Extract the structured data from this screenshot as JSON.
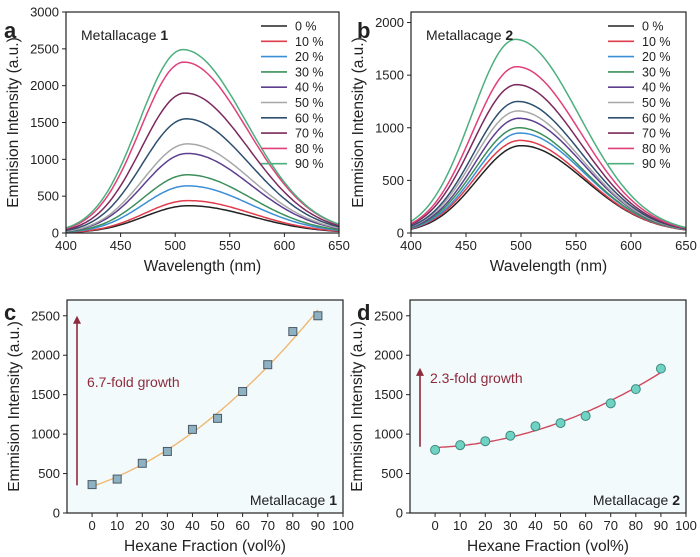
{
  "chart_data": [
    {
      "panel_letter": "a",
      "type": "line",
      "annotation_prefix": "Metallacage ",
      "annotation_bold": "1",
      "xlabel": "Wavelength (nm)",
      "ylabel": "Emmision Intensity (a.u.)",
      "xlim": [
        400,
        650
      ],
      "ylim": [
        0,
        3000
      ],
      "xticks": [
        400,
        450,
        500,
        550,
        600,
        650
      ],
      "yticks": [
        0,
        500,
        1000,
        1500,
        2000,
        2500,
        3000
      ],
      "legend_position": "top-right",
      "series": [
        {
          "name": "0 %",
          "peak_x": 512,
          "peak_y": 370,
          "color": "#222222"
        },
        {
          "name": "10 %",
          "peak_x": 512,
          "peak_y": 440,
          "color": "#e03c4b"
        },
        {
          "name": "20 %",
          "peak_x": 511,
          "peak_y": 640,
          "color": "#3a8fd6"
        },
        {
          "name": "30 %",
          "peak_x": 511,
          "peak_y": 790,
          "color": "#3c8f5a"
        },
        {
          "name": "40 %",
          "peak_x": 511,
          "peak_y": 1080,
          "color": "#5c3f8f"
        },
        {
          "name": "50 %",
          "peak_x": 511,
          "peak_y": 1210,
          "color": "#a8a8a8"
        },
        {
          "name": "60 %",
          "peak_x": 510,
          "peak_y": 1550,
          "color": "#2f4f6f"
        },
        {
          "name": "70 %",
          "peak_x": 509,
          "peak_y": 1900,
          "color": "#7b2a5e"
        },
        {
          "name": "80 %",
          "peak_x": 508,
          "peak_y": 2320,
          "color": "#e0407a"
        },
        {
          "name": "90 %",
          "peak_x": 507,
          "peak_y": 2490,
          "color": "#4caf7d"
        }
      ]
    },
    {
      "panel_letter": "b",
      "type": "line",
      "annotation_prefix": "Metallacage ",
      "annotation_bold": "2",
      "xlabel": "Wavelength (nm)",
      "ylabel": "Emmision Intensity (a.u.)",
      "xlim": [
        400,
        650
      ],
      "ylim": [
        0,
        2100
      ],
      "xticks": [
        400,
        450,
        500,
        550,
        600,
        650
      ],
      "yticks": [
        0,
        500,
        1000,
        1500,
        2000
      ],
      "legend_position": "top-right",
      "series": [
        {
          "name": "0 %",
          "peak_x": 500,
          "peak_y": 830,
          "color": "#222222"
        },
        {
          "name": "10 %",
          "peak_x": 499,
          "peak_y": 880,
          "color": "#e03c4b"
        },
        {
          "name": "20 %",
          "peak_x": 499,
          "peak_y": 950,
          "color": "#3a8fd6"
        },
        {
          "name": "30 %",
          "peak_x": 498,
          "peak_y": 1000,
          "color": "#3c8f5a"
        },
        {
          "name": "40 %",
          "peak_x": 498,
          "peak_y": 1090,
          "color": "#5c3f8f"
        },
        {
          "name": "50 %",
          "peak_x": 497,
          "peak_y": 1160,
          "color": "#a8a8a8"
        },
        {
          "name": "60 %",
          "peak_x": 497,
          "peak_y": 1250,
          "color": "#2f4f6f"
        },
        {
          "name": "70 %",
          "peak_x": 496,
          "peak_y": 1410,
          "color": "#7b2a5e"
        },
        {
          "name": "80 %",
          "peak_x": 496,
          "peak_y": 1580,
          "color": "#e0407a"
        },
        {
          "name": "90 %",
          "peak_x": 495,
          "peak_y": 1840,
          "color": "#4caf7d"
        }
      ]
    },
    {
      "panel_letter": "c",
      "type": "scatter",
      "annotation_prefix": "Metallacage ",
      "annotation_bold": "1",
      "growth_label": "6.7-fold growth",
      "xlabel": "Hexane Fraction (vol%)",
      "ylabel": "Emmision Intensity (a.u.)",
      "xlim": [
        -10,
        100
      ],
      "ylim": [
        0,
        2700
      ],
      "xticks": [
        0,
        10,
        20,
        30,
        40,
        50,
        60,
        70,
        80,
        90,
        100
      ],
      "yticks": [
        0,
        500,
        1000,
        1500,
        2000,
        2500
      ],
      "marker_color": "#8fb2c2",
      "fit_color": "#f0b872",
      "arrow_color": "#8e2b3c",
      "arrow_from": 350,
      "arrow_to": 2500,
      "x": [
        0,
        10,
        20,
        30,
        40,
        50,
        60,
        70,
        80,
        90
      ],
      "y": [
        360,
        430,
        630,
        780,
        1060,
        1200,
        1540,
        1880,
        2300,
        2500
      ]
    },
    {
      "panel_letter": "d",
      "type": "scatter",
      "annotation_prefix": "Metallacage ",
      "annotation_bold": "2",
      "growth_label": "2.3-fold growth",
      "xlabel": "Hexane Fraction (vol%)",
      "ylabel": "Emmision Intensity (a.u.)",
      "xlim": [
        -10,
        100
      ],
      "ylim": [
        0,
        2700
      ],
      "xticks": [
        0,
        10,
        20,
        30,
        40,
        50,
        60,
        70,
        80,
        90,
        100
      ],
      "yticks": [
        0,
        500,
        1000,
        1500,
        2000,
        2500
      ],
      "marker_color": "#6ed3c3",
      "fit_color": "#d0495e",
      "arrow_color": "#8e2b3c",
      "arrow_from": 840,
      "arrow_to": 1840,
      "x": [
        0,
        10,
        20,
        30,
        40,
        50,
        60,
        70,
        80,
        90
      ],
      "y": [
        800,
        860,
        910,
        980,
        1100,
        1140,
        1230,
        1390,
        1570,
        1830
      ]
    }
  ]
}
